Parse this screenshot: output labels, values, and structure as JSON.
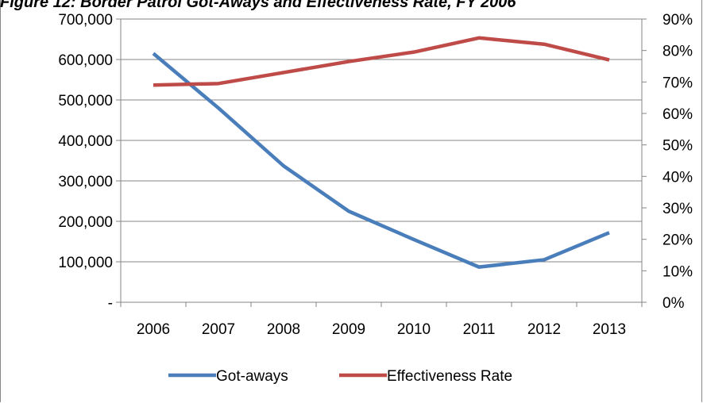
{
  "chart_data": {
    "type": "line",
    "title": "Figure 12: Border Patrol Got-Aways and Effectiveness Rate, FY 2006",
    "x": [
      "2006",
      "2007",
      "2008",
      "2009",
      "2010",
      "2011",
      "2012",
      "2013"
    ],
    "y_left": {
      "range": [
        0,
        700000
      ],
      "ticks": [
        "-",
        "100,000",
        "200,000",
        "300,000",
        "400,000",
        "500,000",
        "600,000",
        "700,000"
      ]
    },
    "y_right": {
      "range": [
        0,
        90
      ],
      "unit": "%",
      "ticks": [
        "0%",
        "10%",
        "20%",
        "30%",
        "40%",
        "50%",
        "60%",
        "70%",
        "80%",
        "90%"
      ]
    },
    "series": [
      {
        "name": "Got-aways",
        "axis": "left",
        "color": "#4a7ebb",
        "values": [
          615000,
          480000,
          337000,
          225000,
          155000,
          87000,
          105000,
          172000
        ]
      },
      {
        "name": "Effectiveness Rate",
        "axis": "right",
        "color": "#be4b48",
        "values": [
          69,
          69.5,
          73,
          76.5,
          79.5,
          84,
          82,
          77
        ]
      }
    ],
    "grid": "horizontal",
    "legend": "bottom"
  }
}
